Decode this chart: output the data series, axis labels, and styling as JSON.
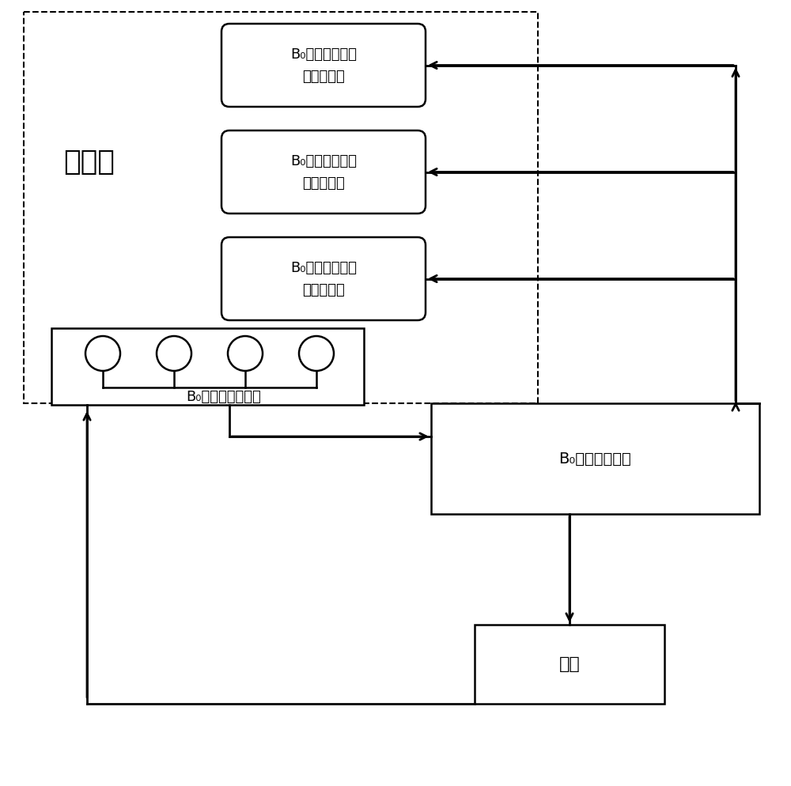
{
  "bg_color": "#ffffff",
  "line_color": "#000000",
  "main_magnet_label": "主磁体",
  "coil1_line1": "B₀磁场补偿线圈",
  "coil1_line2": "上下分布对",
  "coil2_line1": "B₀磁场补偿线圈",
  "coil2_line2": "左右分布对",
  "coil3_line1": "B₀磁场补偿线圈",
  "coil3_line2": "前后分布对",
  "sensor_label": "B₀磁场检测传感器",
  "circuit_label": "B₀磁场补偿电路",
  "computer_label": "电脑"
}
